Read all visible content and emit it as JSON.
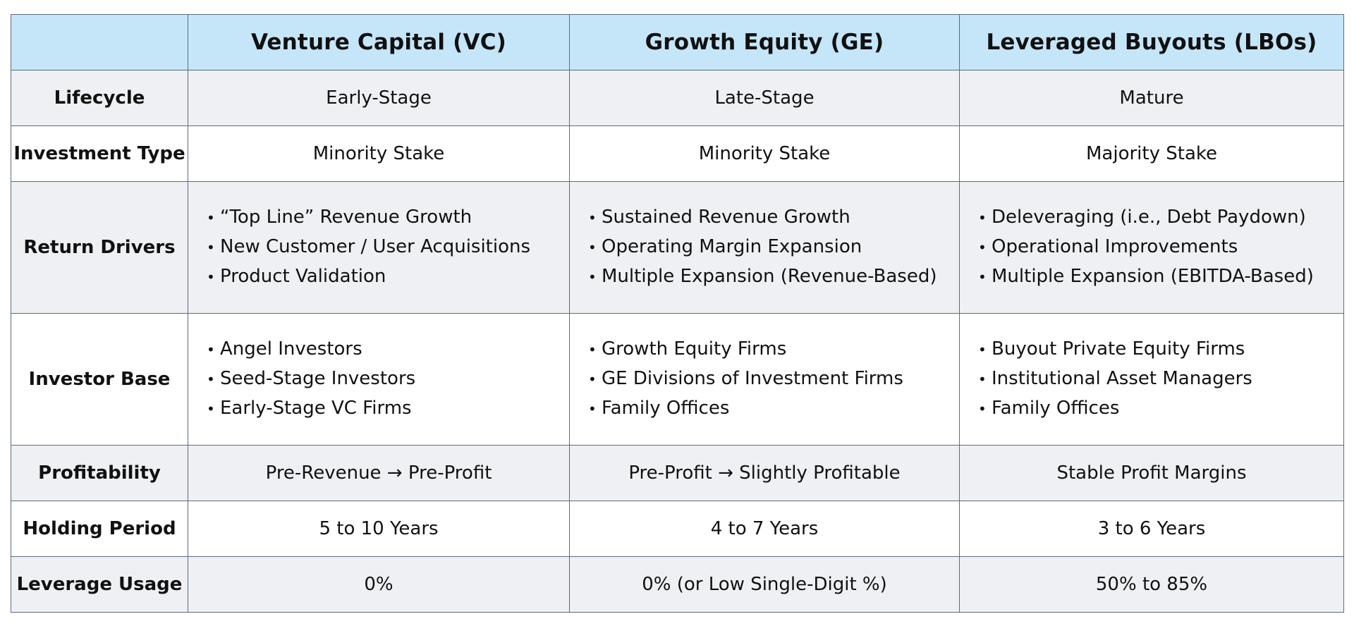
{
  "table": {
    "headers": [
      "",
      "Venture Capital (VC)",
      "Growth Equity (GE)",
      "Leveraged Buyouts (LBOs)"
    ],
    "rows": [
      {
        "label": "Lifecycle",
        "cells": [
          "Early-Stage",
          "Late-Stage",
          "Mature"
        ]
      },
      {
        "label": "Investment Type",
        "cells": [
          "Minority Stake",
          "Minority Stake",
          "Majority Stake"
        ]
      },
      {
        "label": "Return Drivers",
        "cells": [
          [
            "“Top Line” Revenue Growth",
            "New Customer / User Acquisitions",
            "Product Validation"
          ],
          [
            "Sustained Revenue Growth",
            "Operating Margin Expansion",
            "Multiple Expansion (Revenue-Based)"
          ],
          [
            "Deleveraging (i.e., Debt Paydown)",
            "Operational Improvements",
            "Multiple Expansion (EBITDA-Based)"
          ]
        ]
      },
      {
        "label": "Investor Base",
        "cells": [
          [
            "Angel Investors",
            "Seed-Stage Investors",
            "Early-Stage VC Firms"
          ],
          [
            "Growth Equity Firms",
            "GE Divisions of Investment Firms",
            "Family Offices"
          ],
          [
            "Buyout Private Equity Firms",
            "Institutional Asset Managers",
            "Family Offices"
          ]
        ]
      },
      {
        "label": "Profitability",
        "cells": [
          "Pre-Revenue → Pre-Profit",
          "Pre-Profit → Slightly Profitable",
          "Stable Profit Margins"
        ]
      },
      {
        "label": "Holding Period",
        "cells": [
          "5 to 10 Years",
          "4 to 7 Years",
          "3 to 6 Years"
        ]
      },
      {
        "label": "Leverage Usage",
        "cells": [
          "0%",
          "0% (or Low Single-Digit %)",
          "50% to 85%"
        ]
      }
    ]
  }
}
